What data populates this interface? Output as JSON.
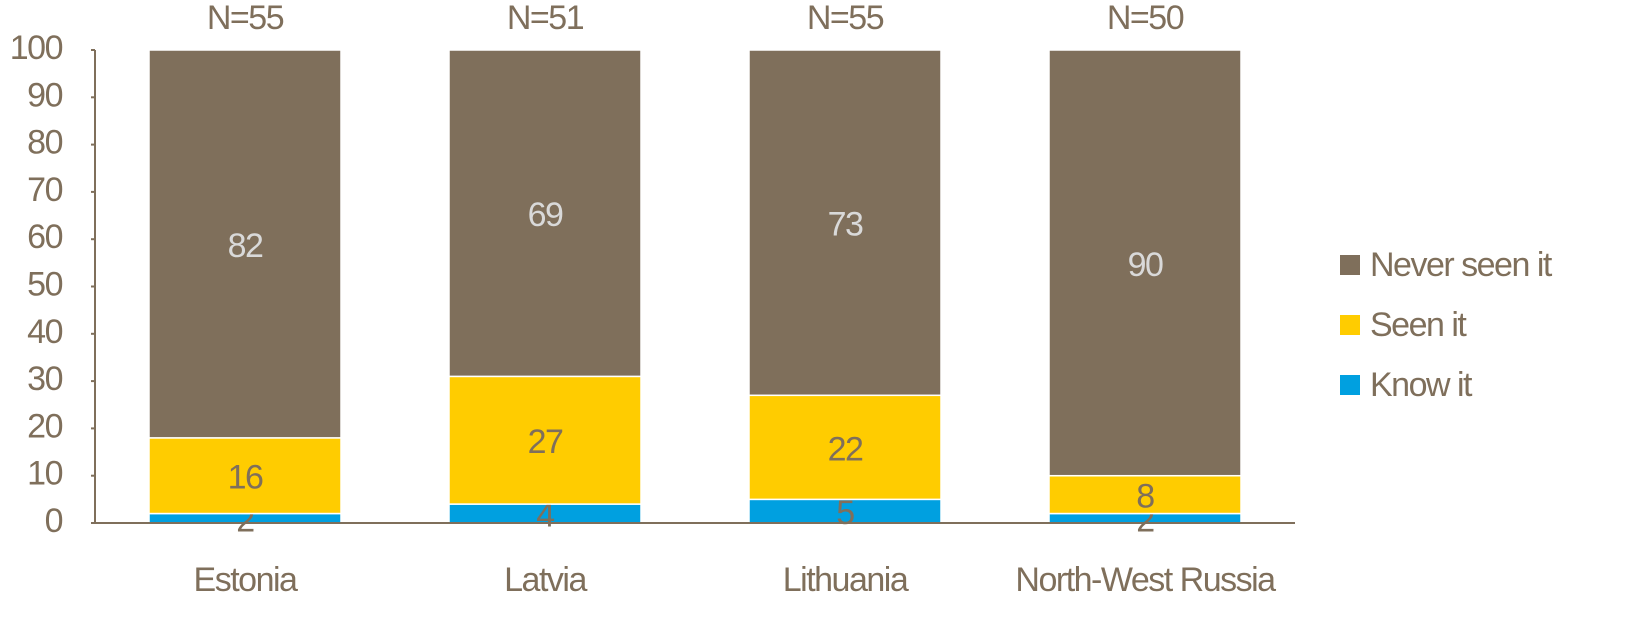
{
  "chart_data": {
    "type": "stacked_bar",
    "categories": [
      "Estonia",
      "Latvia",
      "Lithuania",
      "North-West Russia"
    ],
    "annotations": [
      "N=55",
      "N=51",
      "N=55",
      "N=50"
    ],
    "series": [
      {
        "name": "Know it",
        "color": "#00a0e0",
        "label_color": "#7f6f5b",
        "values": [
          2,
          4,
          5,
          2
        ]
      },
      {
        "name": "Seen it",
        "color": "#ffcc00",
        "label_color": "#7f6f5b",
        "values": [
          16,
          27,
          22,
          8
        ]
      },
      {
        "name": "Never seen it",
        "color": "#7f6f5b",
        "label_color": "#d9d9d9",
        "values": [
          82,
          69,
          73,
          90
        ]
      }
    ],
    "ylim": [
      0,
      100
    ],
    "yticks": [
      0,
      10,
      20,
      30,
      40,
      50,
      60,
      70,
      80,
      90,
      100
    ],
    "legend": "right"
  }
}
